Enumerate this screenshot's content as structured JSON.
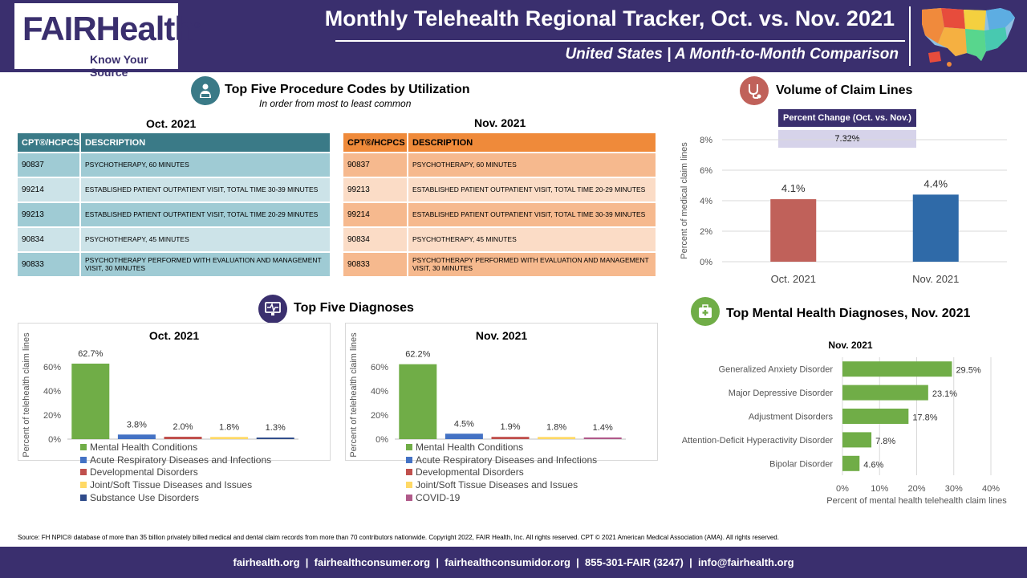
{
  "header": {
    "logo_text": "FAIRHealth",
    "logo_mark": "®",
    "logo_tagline": "Know Your Source",
    "title": "Monthly Telehealth Regional Tracker, Oct. vs. Nov. 2021",
    "subtitle": "United States | A Month-to-Month Comparison"
  },
  "procedures": {
    "title": "Top Five Procedure Codes by Utilization",
    "subtitle": "In order from most to least common",
    "icon": "doctor-laptop-icon",
    "col_code": "CPT®/HCPCS",
    "col_desc": "DESCRIPTION",
    "oct": {
      "label": "Oct. 2021",
      "rows": [
        {
          "code": "90837",
          "desc": "PSYCHOTHERAPY, 60 MINUTES"
        },
        {
          "code": "99214",
          "desc": "ESTABLISHED PATIENT OUTPATIENT VISIT, TOTAL TIME 30-39 MINUTES"
        },
        {
          "code": "99213",
          "desc": "ESTABLISHED PATIENT OUTPATIENT VISIT, TOTAL TIME 20-29 MINUTES"
        },
        {
          "code": "90834",
          "desc": "PSYCHOTHERAPY, 45 MINUTES"
        },
        {
          "code": "90833",
          "desc": "PSYCHOTHERAPY PERFORMED WITH EVALUATION AND MANAGEMENT VISIT, 30 MINUTES"
        }
      ]
    },
    "nov": {
      "label": "Nov. 2021",
      "rows": [
        {
          "code": "90837",
          "desc": "PSYCHOTHERAPY, 60 MINUTES"
        },
        {
          "code": "99213",
          "desc": "ESTABLISHED PATIENT OUTPATIENT VISIT, TOTAL TIME 20-29 MINUTES"
        },
        {
          "code": "99214",
          "desc": "ESTABLISHED PATIENT OUTPATIENT VISIT, TOTAL TIME 30-39 MINUTES"
        },
        {
          "code": "90834",
          "desc": "PSYCHOTHERAPY, 45 MINUTES"
        },
        {
          "code": "90833",
          "desc": "PSYCHOTHERAPY PERFORMED WITH EVALUATION AND MANAGEMENT VISIT, 30 MINUTES"
        }
      ]
    }
  },
  "volume": {
    "title": "Volume of Claim Lines",
    "icon": "stethoscope-icon",
    "pct_change_label": "Percent Change (Oct. vs. Nov.)",
    "pct_change_value": "7.32%"
  },
  "diagnoses": {
    "title": "Top Five Diagnoses",
    "icon": "monitor-heartbeat-icon"
  },
  "mental": {
    "title": "Top Mental Health Diagnoses, Nov. 2021",
    "icon": "first-aid-kit-icon"
  },
  "colors": {
    "brand_purple": "#3a2f6e",
    "teal": "#3a7a87",
    "orange": "#ef8a3a",
    "green": "#70ad47",
    "blue": "#4472c4",
    "red": "#c0504d",
    "yellow": "#ffd966",
    "navy": "#2f4b8a",
    "magenta": "#b05a8a"
  },
  "chart_data": [
    {
      "id": "volume",
      "type": "bar",
      "categories": [
        "Oct. 2021",
        "Nov. 2021"
      ],
      "values": [
        4.1,
        4.4
      ],
      "value_labels": [
        "4.1%",
        "4.4%"
      ],
      "colors": [
        "#c0615a",
        "#2f6aa8"
      ],
      "ylabel": "Percent of medical claim lines",
      "ylim": [
        0,
        8
      ],
      "yticks": [
        "0%",
        "2%",
        "4%",
        "6%",
        "8%"
      ],
      "grid": true
    },
    {
      "id": "diag_oct",
      "type": "bar",
      "title": "Oct. 2021",
      "categories": [
        "Mental Health Conditions",
        "Acute Respiratory Diseases and Infections",
        "Developmental Disorders",
        "Joint/Soft Tissue Diseases and Issues",
        "Substance Use Disorders"
      ],
      "values": [
        62.7,
        3.8,
        2.0,
        1.8,
        1.3
      ],
      "value_labels": [
        "62.7%",
        "3.8%",
        "2.0%",
        "1.8%",
        "1.3%"
      ],
      "colors": [
        "#70ad47",
        "#4472c4",
        "#c0504d",
        "#ffd966",
        "#2f4b8a"
      ],
      "ylabel": "Percent of telehealth claim lines",
      "ylim": [
        0,
        70
      ],
      "yticks": [
        "0%",
        "20%",
        "40%",
        "60%"
      ],
      "legend": "bottom-left"
    },
    {
      "id": "diag_nov",
      "type": "bar",
      "title": "Nov. 2021",
      "categories": [
        "Mental Health Conditions",
        "Acute Respiratory Diseases and Infections",
        "Developmental Disorders",
        "Joint/Soft Tissue Diseases and Issues",
        "COVID-19"
      ],
      "values": [
        62.2,
        4.5,
        1.9,
        1.8,
        1.4
      ],
      "value_labels": [
        "62.2%",
        "4.5%",
        "1.9%",
        "1.8%",
        "1.4%"
      ],
      "colors": [
        "#70ad47",
        "#4472c4",
        "#c0504d",
        "#ffd966",
        "#b05a8a"
      ],
      "ylabel": "Percent of telehealth claim lines",
      "ylim": [
        0,
        70
      ],
      "yticks": [
        "0%",
        "20%",
        "40%",
        "60%"
      ],
      "legend": "bottom-left"
    },
    {
      "id": "mental_nov",
      "type": "bar",
      "orientation": "horizontal",
      "title": "Nov. 2021",
      "categories": [
        "Generalized Anxiety Disorder",
        "Major Depressive Disorder",
        "Adjustment Disorders",
        "Attention-Deficit Hyperactivity Disorder",
        "Bipolar Disorder"
      ],
      "values": [
        29.5,
        23.1,
        17.8,
        7.8,
        4.6
      ],
      "value_labels": [
        "29.5%",
        "23.1%",
        "17.8%",
        "7.8%",
        "4.6%"
      ],
      "colors": [
        "#70ad47"
      ],
      "xlabel": "Percent of mental health telehealth claim lines",
      "xlim": [
        0,
        40
      ],
      "xticks": [
        "0%",
        "10%",
        "20%",
        "30%",
        "40%"
      ],
      "grid": true
    }
  ],
  "source": "Source: FH NPIC® database of more than 35 billion privately billed medical and dental claim records from more than 70 contributors nationwide. Copyright 2022, FAIR Health, Inc. All rights reserved. CPT © 2021 American Medical Association (AMA). All rights reserved.",
  "footer": "fairhealth.org  |  fairhealthconsumer.org  |  fairhealthconsumidor.org  |  855-301-FAIR (3247)  |  info@fairhealth.org"
}
